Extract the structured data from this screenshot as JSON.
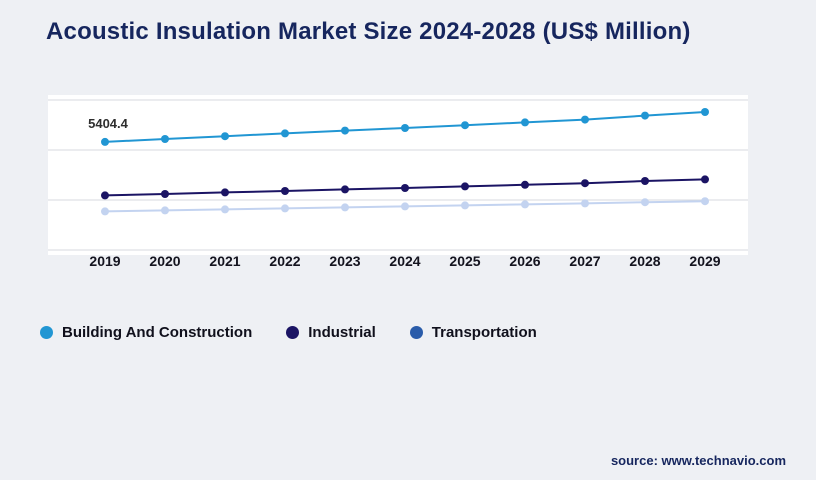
{
  "chart_data": {
    "type": "line",
    "title": "Acoustic Insulation Market Size 2024-2028 (US$ Million)",
    "categories": [
      "2019",
      "2020",
      "2021",
      "2022",
      "2023",
      "2024",
      "2025",
      "2026",
      "2027",
      "2028",
      "2029"
    ],
    "series": [
      {
        "name": "Building And Construction",
        "color": "#2196d3",
        "legend_color": "#2196d3",
        "values": [
          5404.4,
          5550,
          5690,
          5830,
          5970,
          6100,
          6240,
          6380,
          6520,
          6720,
          6900
        ]
      },
      {
        "name": "Industrial",
        "color": "#1b1464",
        "legend_color": "#1b1464",
        "values": [
          2730,
          2800,
          2880,
          2950,
          3030,
          3100,
          3180,
          3260,
          3340,
          3450,
          3530
        ]
      },
      {
        "name": "Transportation",
        "color": "#c3d3f0",
        "legend_color": "#2a5caa",
        "values": [
          1930,
          1980,
          2030,
          2080,
          2130,
          2180,
          2230,
          2280,
          2330,
          2390,
          2440
        ]
      }
    ],
    "annotation": {
      "text": "5404.4",
      "series": 0,
      "index": 0
    },
    "xlabel": "",
    "ylabel": "",
    "ylim": [
      0,
      7500
    ],
    "grid": true,
    "gridline_count": 4,
    "legend_position": "bottom"
  },
  "footer": {
    "source": "source: www.technavio.com"
  },
  "style": {
    "grid_color": "#d7dadf",
    "plot_bg": "#ffffff",
    "tick_label_color": "#14141f",
    "annotation_color": "#2e2e2e"
  }
}
